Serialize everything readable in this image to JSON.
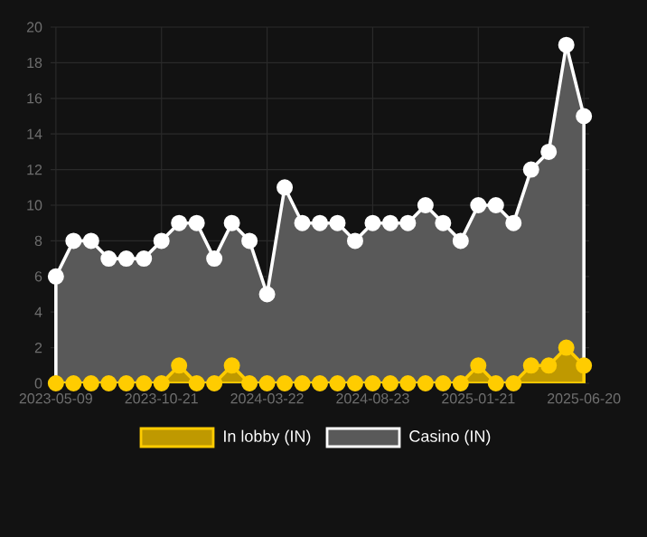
{
  "chart_data": {
    "type": "area",
    "categories": [
      "2023-05-09",
      null,
      null,
      null,
      null,
      null,
      "2023-10-21",
      null,
      null,
      null,
      null,
      null,
      "2024-03-22",
      null,
      null,
      null,
      null,
      null,
      "2024-08-23",
      null,
      null,
      null,
      null,
      null,
      "2025-01-21",
      null,
      null,
      null,
      null,
      null,
      "2025-06-20"
    ],
    "series": [
      {
        "name": "In lobby (IN)",
        "color": "#ffcc00",
        "values": [
          0,
          0,
          0,
          0,
          0,
          0,
          0,
          1,
          0,
          0,
          1,
          0,
          0,
          0,
          0,
          0,
          0,
          0,
          0,
          0,
          0,
          0,
          0,
          0,
          1,
          0,
          0,
          1,
          1,
          2,
          1
        ]
      },
      {
        "name": "Casino (IN)",
        "color": "#ffffff",
        "values": [
          6,
          8,
          8,
          7,
          7,
          7,
          8,
          9,
          9,
          7,
          9,
          8,
          5,
          11,
          9,
          9,
          9,
          8,
          9,
          9,
          9,
          10,
          9,
          8,
          10,
          10,
          9,
          12,
          13,
          19,
          15
        ]
      }
    ],
    "ylim": [
      0,
      20
    ],
    "yticks": [
      0,
      2,
      4,
      6,
      8,
      10,
      12,
      14,
      16,
      18,
      20
    ],
    "grid": true,
    "legend": "bottom",
    "marker": "circle",
    "line_style": "solid"
  }
}
